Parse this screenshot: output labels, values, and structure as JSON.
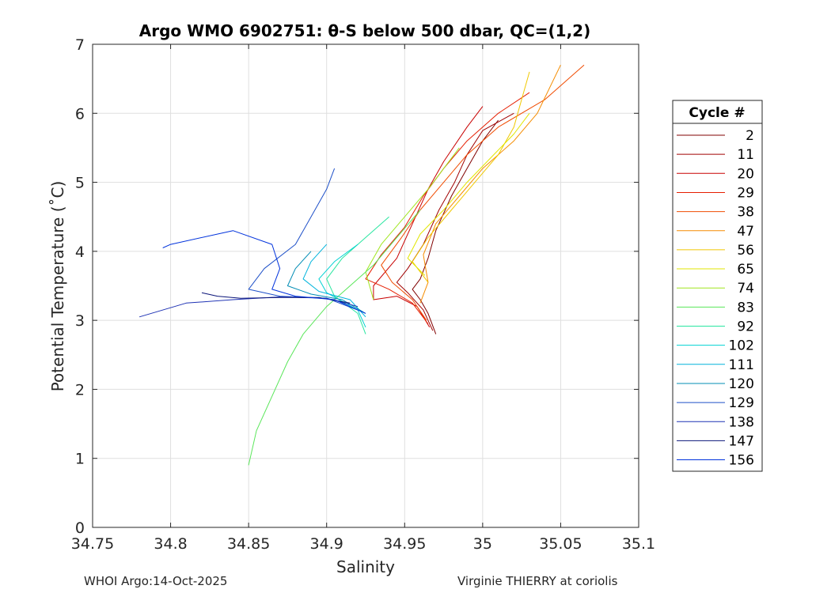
{
  "chart_data": {
    "type": "line",
    "title": "Argo WMO 6902751: θ-S below 500 dbar,  QC=(1,2)",
    "xlabel": "Salinity",
    "ylabel": "Potential Temperature (˚C)",
    "xlim": [
      34.75,
      35.1
    ],
    "ylim": [
      0,
      7
    ],
    "xticks": [
      34.75,
      34.8,
      34.85,
      34.9,
      34.95,
      35,
      35.05,
      35.1
    ],
    "xtick_labels": [
      "34.75",
      "34.8",
      "34.85",
      "34.9",
      "34.95",
      "35",
      "35.05",
      "35.1"
    ],
    "yticks": [
      0,
      1,
      2,
      3,
      4,
      5,
      6,
      7
    ],
    "ytick_labels": [
      "0",
      "1",
      "2",
      "3",
      "4",
      "5",
      "6",
      "7"
    ],
    "grid": true,
    "legend": {
      "title": "Cycle #",
      "placement": "right",
      "entries": [
        {
          "label": "2",
          "color": "#800000"
        },
        {
          "label": "11",
          "color": "#a00000"
        },
        {
          "label": "20",
          "color": "#c80000"
        },
        {
          "label": "29",
          "color": "#e61e00"
        },
        {
          "label": "38",
          "color": "#f04b00"
        },
        {
          "label": "47",
          "color": "#f58c00"
        },
        {
          "label": "56",
          "color": "#f0c800"
        },
        {
          "label": "65",
          "color": "#e1e600"
        },
        {
          "label": "74",
          "color": "#a0e61e"
        },
        {
          "label": "83",
          "color": "#5ae65a"
        },
        {
          "label": "92",
          "color": "#28e6a0"
        },
        {
          "label": "102",
          "color": "#00d2d2"
        },
        {
          "label": "111",
          "color": "#00b4dc"
        },
        {
          "label": "120",
          "color": "#008cb4"
        },
        {
          "label": "129",
          "color": "#1e50c8"
        },
        {
          "label": "138",
          "color": "#1e32b4"
        },
        {
          "label": "147",
          "color": "#0a1478"
        },
        {
          "label": "156",
          "color": "#0032dc"
        }
      ]
    },
    "series": [
      {
        "name": "2",
        "color": "#800000",
        "points": [
          [
            34.97,
            2.8
          ],
          [
            34.965,
            3.1
          ],
          [
            34.96,
            3.3
          ],
          [
            34.955,
            3.45
          ],
          [
            34.96,
            3.6
          ],
          [
            34.965,
            3.9
          ],
          [
            34.97,
            4.3
          ],
          [
            34.98,
            4.8
          ],
          [
            34.99,
            5.2
          ],
          [
            35.0,
            5.6
          ],
          [
            35.01,
            5.9
          ]
        ]
      },
      {
        "name": "11",
        "color": "#a00000",
        "points": [
          [
            34.968,
            2.85
          ],
          [
            34.962,
            3.15
          ],
          [
            34.952,
            3.4
          ],
          [
            34.945,
            3.55
          ],
          [
            34.952,
            3.75
          ],
          [
            34.962,
            4.1
          ],
          [
            34.972,
            4.6
          ],
          [
            34.982,
            5.0
          ],
          [
            34.99,
            5.4
          ],
          [
            35.0,
            5.75
          ],
          [
            35.02,
            6.0
          ]
        ]
      },
      {
        "name": "20",
        "color": "#c80000",
        "points": [
          [
            34.966,
            2.9
          ],
          [
            34.958,
            3.2
          ],
          [
            34.945,
            3.35
          ],
          [
            34.93,
            3.3
          ],
          [
            34.93,
            3.5
          ],
          [
            34.945,
            3.9
          ],
          [
            34.955,
            4.4
          ],
          [
            34.965,
            4.9
          ],
          [
            34.975,
            5.3
          ],
          [
            34.99,
            5.8
          ],
          [
            35.0,
            6.1
          ]
        ]
      },
      {
        "name": "29",
        "color": "#e61e00",
        "points": [
          [
            34.965,
            2.95
          ],
          [
            34.955,
            3.25
          ],
          [
            34.94,
            3.45
          ],
          [
            34.925,
            3.6
          ],
          [
            34.935,
            3.95
          ],
          [
            34.95,
            4.35
          ],
          [
            34.962,
            4.8
          ],
          [
            34.975,
            5.2
          ],
          [
            34.99,
            5.6
          ],
          [
            35.01,
            6.0
          ],
          [
            35.03,
            6.3
          ]
        ]
      },
      {
        "name": "38",
        "color": "#f04b00",
        "points": [
          [
            34.964,
            3.0
          ],
          [
            34.955,
            3.3
          ],
          [
            34.942,
            3.55
          ],
          [
            34.935,
            3.8
          ],
          [
            34.948,
            4.2
          ],
          [
            34.96,
            4.6
          ],
          [
            34.975,
            5.0
          ],
          [
            34.99,
            5.4
          ],
          [
            35.01,
            5.8
          ],
          [
            35.04,
            6.2
          ],
          [
            35.065,
            6.7
          ]
        ]
      },
      {
        "name": "47",
        "color": "#f58c00",
        "points": [
          [
            34.96,
            3.25
          ],
          [
            34.965,
            3.55
          ],
          [
            34.962,
            3.95
          ],
          [
            34.97,
            4.4
          ],
          [
            34.985,
            4.8
          ],
          [
            35.0,
            5.2
          ],
          [
            35.02,
            5.6
          ],
          [
            35.035,
            6.0
          ],
          [
            35.05,
            6.7
          ]
        ]
      },
      {
        "name": "56",
        "color": "#f0c800",
        "points": [
          [
            34.965,
            3.55
          ],
          [
            34.955,
            3.85
          ],
          [
            34.965,
            4.2
          ],
          [
            34.98,
            4.6
          ],
          [
            34.995,
            5.0
          ],
          [
            35.01,
            5.4
          ],
          [
            35.02,
            5.8
          ],
          [
            35.025,
            6.2
          ],
          [
            35.03,
            6.6
          ]
        ]
      },
      {
        "name": "65",
        "color": "#e1e600",
        "points": [
          [
            34.963,
            3.65
          ],
          [
            34.952,
            3.9
          ],
          [
            34.96,
            4.25
          ],
          [
            34.975,
            4.6
          ],
          [
            34.99,
            5.0
          ],
          [
            35.005,
            5.35
          ],
          [
            35.02,
            5.7
          ],
          [
            35.03,
            6.0
          ]
        ]
      },
      {
        "name": "74",
        "color": "#a0e61e",
        "points": [
          [
            34.93,
            3.3
          ],
          [
            34.925,
            3.7
          ],
          [
            34.935,
            4.1
          ],
          [
            34.95,
            4.5
          ],
          [
            34.965,
            4.9
          ],
          [
            34.975,
            5.2
          ],
          [
            34.985,
            5.5
          ]
        ]
      },
      {
        "name": "83",
        "color": "#5ae65a",
        "points": [
          [
            34.85,
            0.9
          ],
          [
            34.855,
            1.4
          ],
          [
            34.865,
            1.9
          ],
          [
            34.875,
            2.4
          ],
          [
            34.885,
            2.8
          ],
          [
            34.9,
            3.2
          ],
          [
            34.915,
            3.5
          ],
          [
            34.93,
            3.8
          ],
          [
            34.945,
            4.2
          ],
          [
            34.96,
            4.6
          ]
        ]
      },
      {
        "name": "92",
        "color": "#28e6a0",
        "points": [
          [
            34.925,
            2.8
          ],
          [
            34.92,
            3.1
          ],
          [
            34.905,
            3.35
          ],
          [
            34.9,
            3.6
          ],
          [
            34.91,
            3.9
          ],
          [
            34.925,
            4.2
          ],
          [
            34.94,
            4.5
          ]
        ]
      },
      {
        "name": "102",
        "color": "#00d2d2",
        "points": [
          [
            34.925,
            2.9
          ],
          [
            34.92,
            3.15
          ],
          [
            34.9,
            3.4
          ],
          [
            34.895,
            3.6
          ],
          [
            34.905,
            3.85
          ],
          [
            34.92,
            4.1
          ]
        ]
      },
      {
        "name": "111",
        "color": "#00b4dc",
        "points": [
          [
            34.925,
            3.05
          ],
          [
            34.915,
            3.3
          ],
          [
            34.895,
            3.42
          ],
          [
            34.885,
            3.6
          ],
          [
            34.89,
            3.85
          ],
          [
            34.9,
            4.1
          ]
        ]
      },
      {
        "name": "120",
        "color": "#008cb4",
        "points": [
          [
            34.925,
            3.1
          ],
          [
            34.91,
            3.3
          ],
          [
            34.89,
            3.38
          ],
          [
            34.875,
            3.5
          ],
          [
            34.88,
            3.75
          ],
          [
            34.89,
            4.0
          ]
        ]
      },
      {
        "name": "129",
        "color": "#1e50c8",
        "points": [
          [
            34.92,
            3.15
          ],
          [
            34.9,
            3.32
          ],
          [
            34.87,
            3.35
          ],
          [
            34.85,
            3.45
          ],
          [
            34.86,
            3.75
          ],
          [
            34.88,
            4.1
          ],
          [
            34.89,
            4.5
          ],
          [
            34.9,
            4.9
          ],
          [
            34.905,
            5.2
          ]
        ]
      },
      {
        "name": "138",
        "color": "#1e32b4",
        "points": [
          [
            34.92,
            3.2
          ],
          [
            34.9,
            3.32
          ],
          [
            34.87,
            3.34
          ],
          [
            34.84,
            3.3
          ],
          [
            34.81,
            3.25
          ],
          [
            34.78,
            3.05
          ]
        ]
      },
      {
        "name": "147",
        "color": "#0a1478",
        "points": [
          [
            34.915,
            3.25
          ],
          [
            34.895,
            3.33
          ],
          [
            34.87,
            3.33
          ],
          [
            34.845,
            3.32
          ],
          [
            34.83,
            3.35
          ],
          [
            34.82,
            3.4
          ]
        ]
      },
      {
        "name": "156",
        "color": "#0032dc",
        "points": [
          [
            34.925,
            3.1
          ],
          [
            34.905,
            3.3
          ],
          [
            34.88,
            3.35
          ],
          [
            34.865,
            3.45
          ],
          [
            34.87,
            3.75
          ],
          [
            34.865,
            4.1
          ],
          [
            34.84,
            4.3
          ],
          [
            34.8,
            4.1
          ],
          [
            34.795,
            4.05
          ]
        ]
      }
    ]
  },
  "footer": {
    "left": "WHOI Argo:14-Oct-2025",
    "right": "Virginie THIERRY at coriolis"
  }
}
